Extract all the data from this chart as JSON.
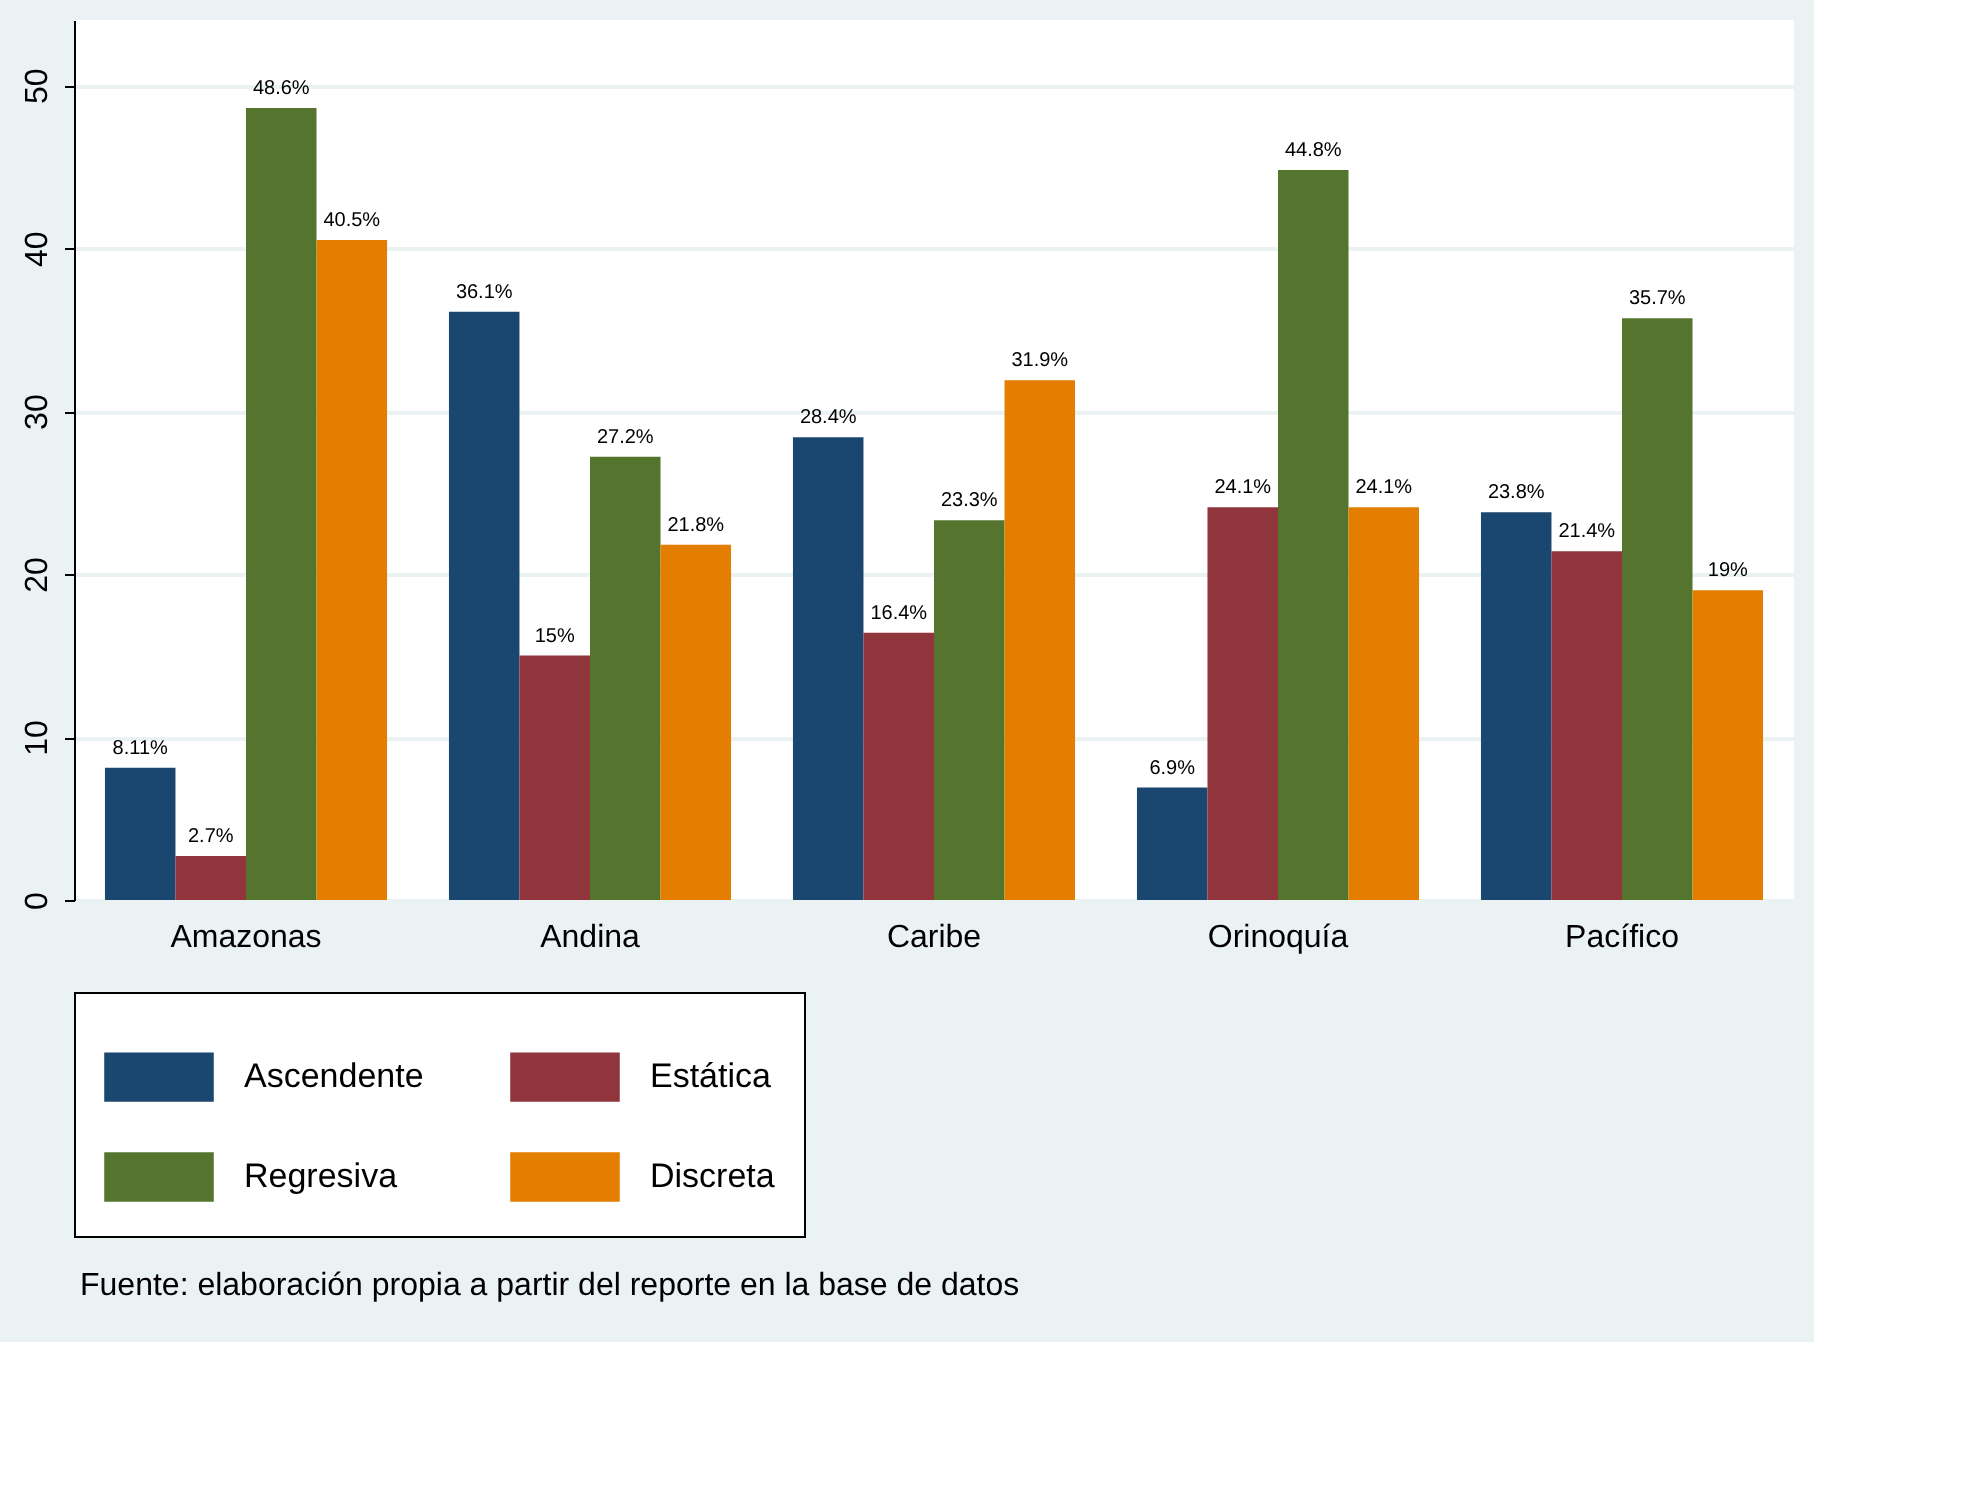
{
  "chart_data": {
    "type": "bar",
    "categories": [
      "Amazonas",
      "Andina",
      "Caribe",
      "Orinoquía",
      "Pacífico"
    ],
    "series": [
      {
        "name": "Ascendente",
        "color": "#1a476f",
        "values": [
          8.11,
          36.1,
          28.4,
          6.9,
          23.8
        ],
        "value_labels": [
          "8.11%",
          "36.1%",
          "28.4%",
          "6.9%",
          "23.8%"
        ]
      },
      {
        "name": "Estática",
        "color": "#90353b",
        "values": [
          2.7,
          15,
          16.4,
          24.1,
          21.4
        ],
        "value_labels": [
          "2.7%",
          "15%",
          "16.4%",
          "24.1%",
          "21.4%"
        ]
      },
      {
        "name": "Regresiva",
        "color": "#55752f",
        "values": [
          48.6,
          27.2,
          23.3,
          44.8,
          35.7
        ],
        "value_labels": [
          "48.6%",
          "27.2%",
          "23.3%",
          "44.8%",
          "35.7%"
        ]
      },
      {
        "name": "Discreta",
        "color": "#e37e00",
        "values": [
          40.5,
          21.8,
          31.9,
          24.1,
          19
        ],
        "value_labels": [
          "40.5%",
          "21.8%",
          "31.9%",
          "24.1%",
          "19%"
        ]
      }
    ],
    "ylim": [
      0,
      54
    ],
    "yticks": [
      0,
      10,
      20,
      30,
      40,
      50
    ],
    "grid": "y",
    "legend": "bottom",
    "annotations": [
      "Fuente: elaboración propia a partir del reporte en la base de datos"
    ]
  }
}
